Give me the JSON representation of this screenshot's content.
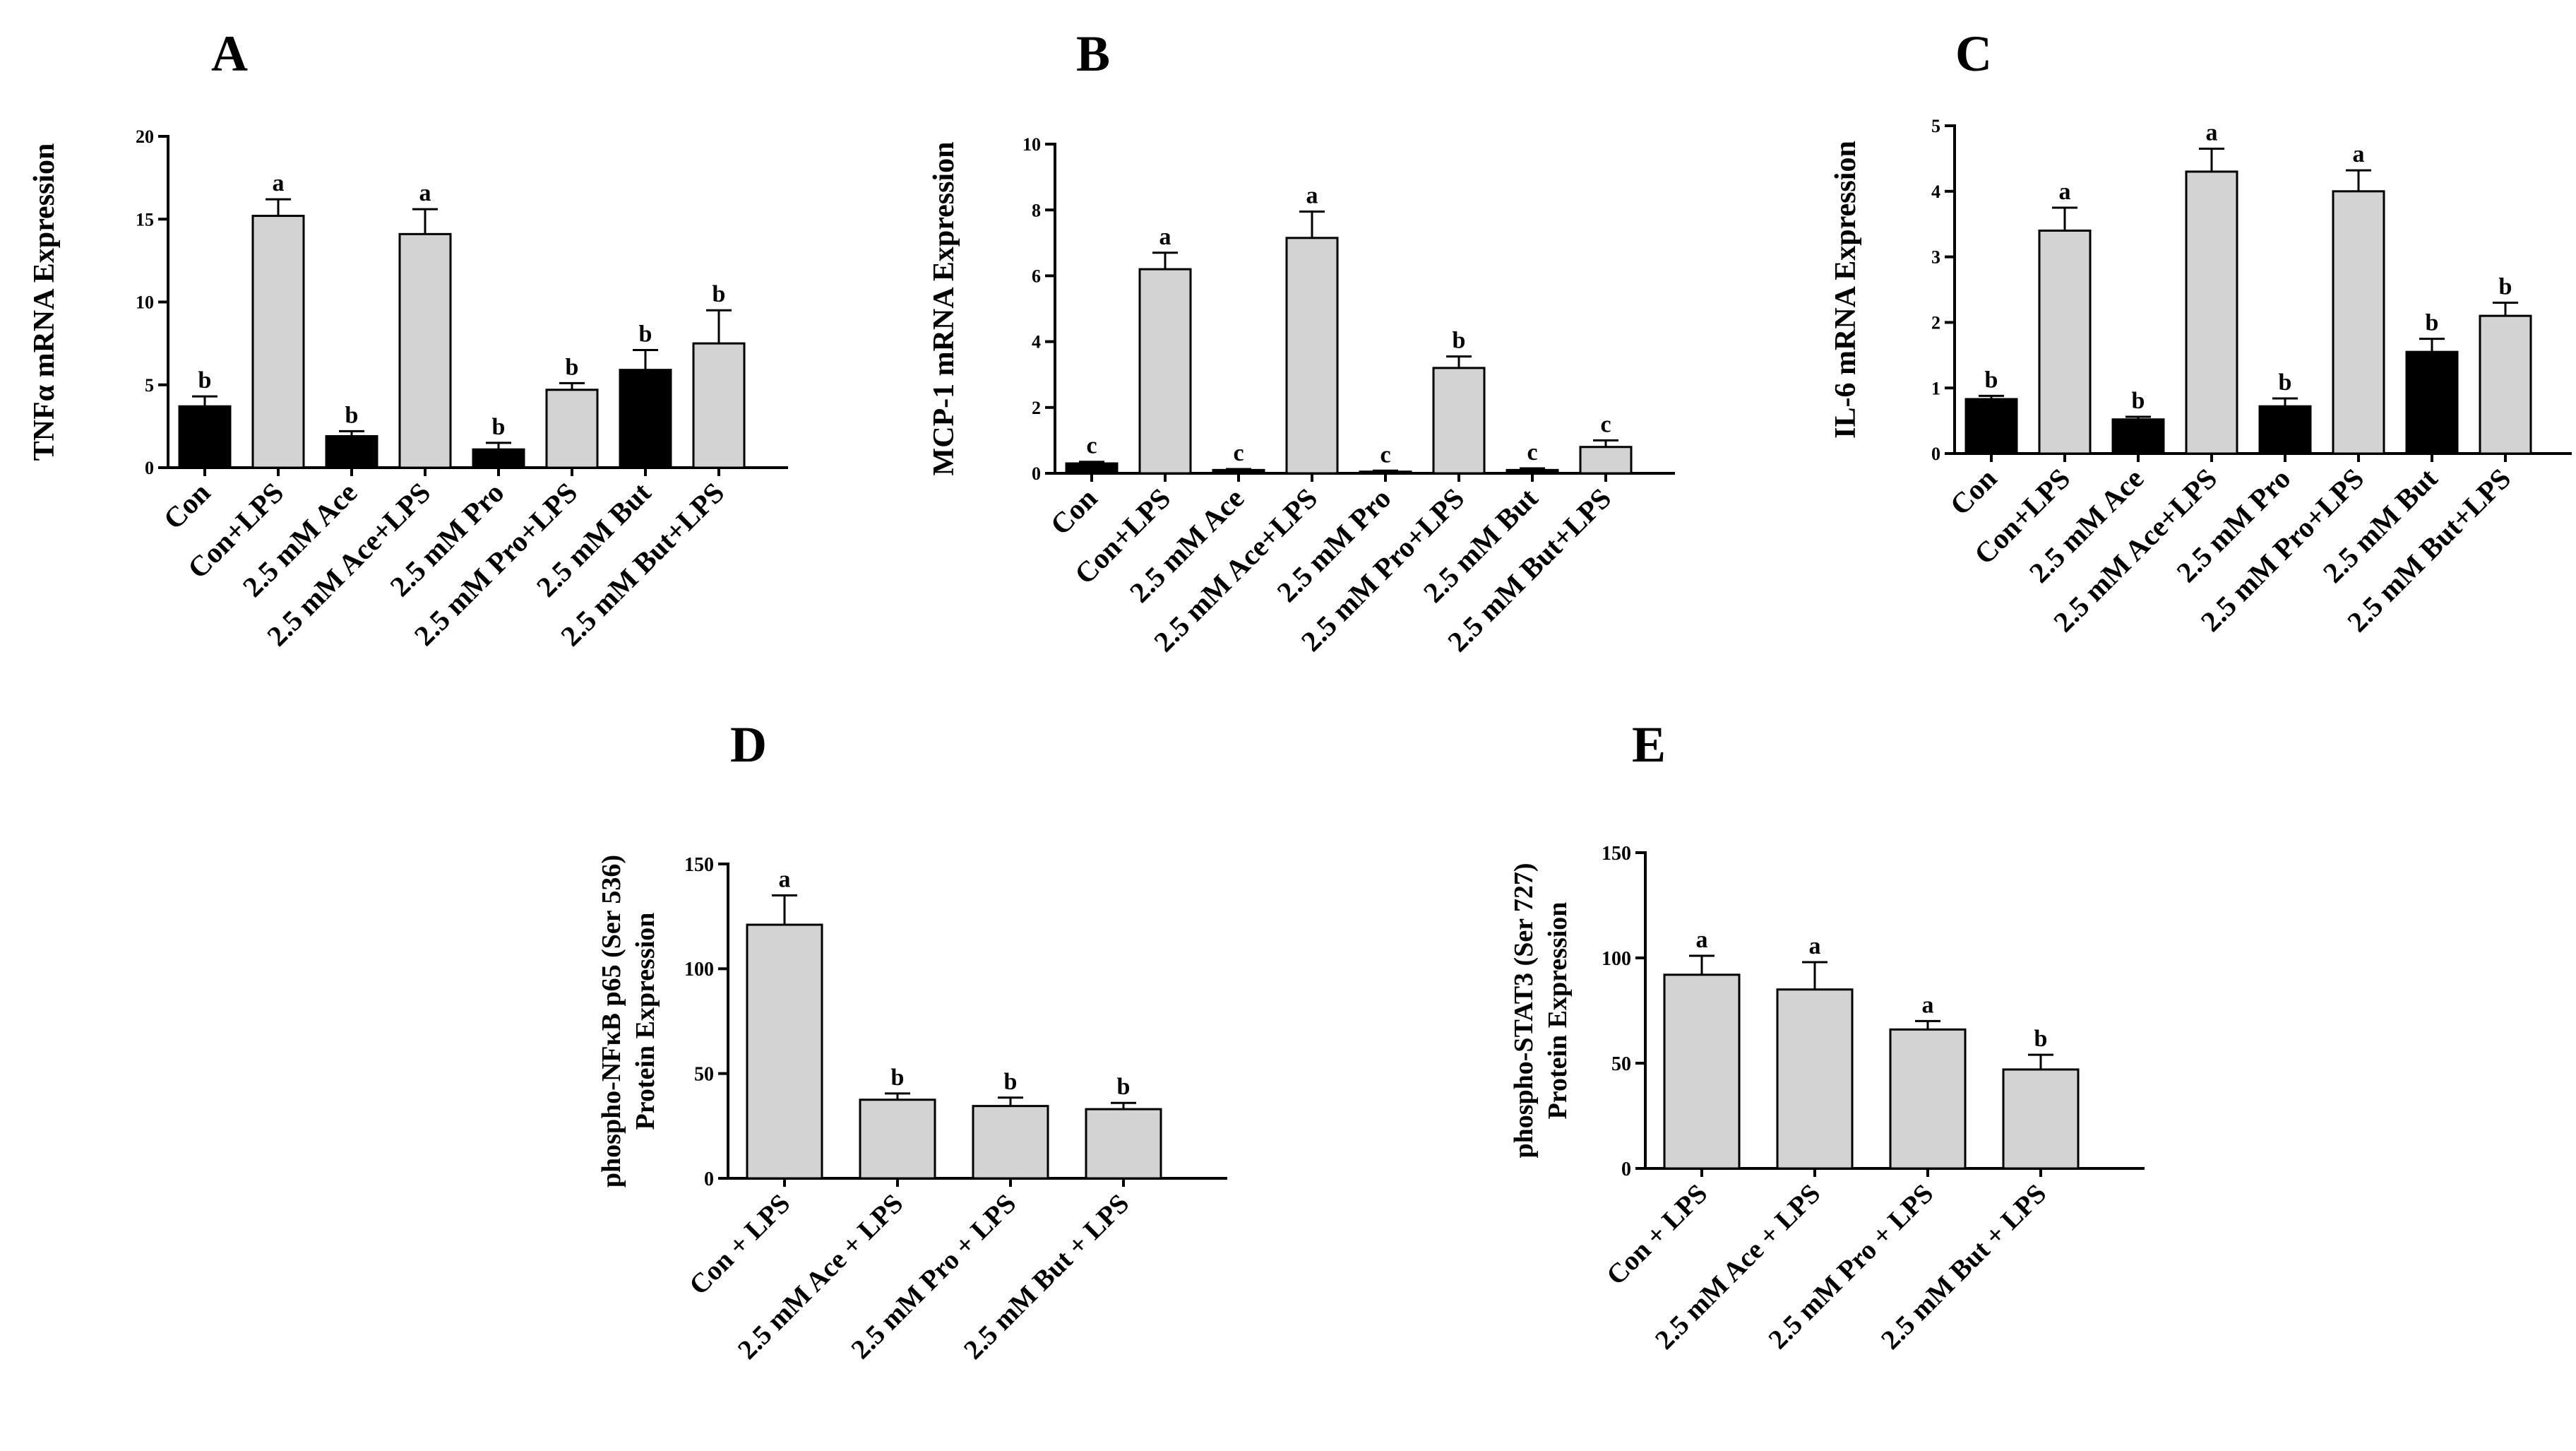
{
  "figure": {
    "colors": {
      "control": "#000000",
      "treated": "#d3d3d3",
      "axis": "#000000"
    }
  },
  "chart_data": [
    {
      "panel": "A",
      "type": "bar",
      "ylabel": "TNFα mRNA Expression",
      "ylim": [
        0,
        20
      ],
      "yticks": [
        0,
        5,
        10,
        15,
        20
      ],
      "categories": [
        "Con",
        "Con+LPS",
        "2.5 mM Ace",
        "2.5 mM Ace+LPS",
        "2.5 mM Pro",
        "2.5 mM Pro+LPS",
        "2.5 mM But",
        "2.5 mM But+LPS"
      ],
      "values": [
        3.7,
        15.2,
        1.9,
        14.1,
        1.1,
        4.7,
        5.9,
        7.5
      ],
      "errors": [
        0.6,
        1.0,
        0.3,
        1.5,
        0.4,
        0.4,
        1.2,
        2.0
      ],
      "letters": [
        "b",
        "a",
        "b",
        "a",
        "b",
        "b",
        "b",
        "b"
      ],
      "fills": [
        "control",
        "treated",
        "control",
        "treated",
        "control",
        "treated",
        "control",
        "treated"
      ]
    },
    {
      "panel": "B",
      "type": "bar",
      "ylabel": "MCP-1 mRNA Expression",
      "ylim": [
        0,
        10
      ],
      "yticks": [
        0,
        2,
        4,
        6,
        8,
        10
      ],
      "categories": [
        "Con",
        "Con+LPS",
        "2.5 mM Ace",
        "2.5 mM Ace+LPS",
        "2.5 mM Pro",
        "2.5 mM Pro+LPS",
        "2.5 mM But",
        "2.5 mM But+LPS"
      ],
      "values": [
        0.3,
        6.2,
        0.1,
        7.15,
        0.05,
        3.2,
        0.1,
        0.8
      ],
      "errors": [
        0.05,
        0.5,
        0.03,
        0.8,
        0.03,
        0.35,
        0.05,
        0.2
      ],
      "letters": [
        "c",
        "a",
        "c",
        "a",
        "c",
        "b",
        "c",
        "c"
      ],
      "fills": [
        "control",
        "treated",
        "control",
        "treated",
        "control",
        "treated",
        "control",
        "treated"
      ]
    },
    {
      "panel": "C",
      "type": "bar",
      "ylabel": "IL-6 mRNA Expression",
      "ylim": [
        0,
        5
      ],
      "yticks": [
        0,
        1,
        2,
        3,
        4,
        5
      ],
      "categories": [
        "Con",
        "Con+LPS",
        "2.5 mM Ace",
        "2.5 mM Ace+LPS",
        "2.5 mM Pro",
        "2.5 mM Pro+LPS",
        "2.5 mM But",
        "2.5 mM But+LPS"
      ],
      "values": [
        0.83,
        3.4,
        0.52,
        4.3,
        0.72,
        4.0,
        1.55,
        2.1
      ],
      "errors": [
        0.05,
        0.35,
        0.04,
        0.35,
        0.12,
        0.32,
        0.2,
        0.2
      ],
      "letters": [
        "b",
        "a",
        "b",
        "a",
        "b",
        "a",
        "b",
        "b"
      ],
      "fills": [
        "control",
        "treated",
        "control",
        "treated",
        "control",
        "treated",
        "control",
        "treated"
      ]
    },
    {
      "panel": "D",
      "type": "bar",
      "ylabel": [
        "phospho-NFκB p65 (Ser 536)",
        "Protein Expression"
      ],
      "ylim": [
        0,
        150
      ],
      "yticks": [
        0,
        50,
        100,
        150
      ],
      "categories": [
        "Con + LPS",
        "2.5 mM Ace + LPS",
        "2.5 mM Pro + LPS",
        "2.5 mM But + LPS"
      ],
      "values": [
        121,
        37.5,
        34.5,
        33
      ],
      "errors": [
        14,
        3,
        4,
        3
      ],
      "letters": [
        "a",
        "b",
        "b",
        "b"
      ],
      "fills": [
        "treated",
        "treated",
        "treated",
        "treated"
      ]
    },
    {
      "panel": "E",
      "type": "bar",
      "ylabel": [
        "phospho-STAT3  (Ser 727)",
        "Protein Expression"
      ],
      "ylim": [
        0,
        150
      ],
      "yticks": [
        0,
        50,
        100,
        150
      ],
      "categories": [
        "Con + LPS",
        "2.5 mM Ace + LPS",
        "2.5 mM Pro + LPS",
        "2.5 mM But + LPS"
      ],
      "values": [
        92,
        85,
        66,
        47
      ],
      "errors": [
        9,
        13,
        4,
        7
      ],
      "letters": [
        "a",
        "a",
        "a",
        "b"
      ],
      "fills": [
        "treated",
        "treated",
        "treated",
        "treated"
      ]
    }
  ]
}
